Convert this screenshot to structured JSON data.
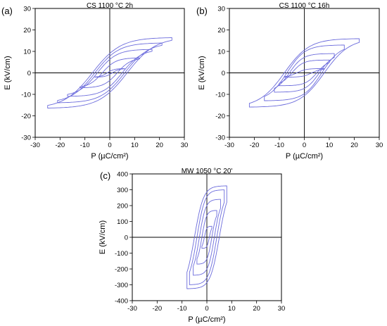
{
  "chart_data": [
    {
      "type": "line",
      "panel_label": "(a)",
      "title": "CS 1100 °C 2h",
      "xlabel": "P (µC/cm²)",
      "ylabel": "E (kV/cm)",
      "xlim": [
        -30,
        30
      ],
      "ylim": [
        -30,
        30
      ],
      "xticks": [
        "-30",
        "-20",
        "-10",
        "0",
        "10",
        "20",
        "30"
      ],
      "yticks": [
        "30",
        "20",
        "10",
        "0",
        "-10",
        "-20",
        "-30"
      ],
      "grid": false,
      "series": [
        {
          "values": {
            "Pmax": 6,
            "Emax": 2,
            "Ec": 2,
            "Pr": 1
          }
        },
        {
          "values": {
            "Pmax": 12,
            "Emax": 7,
            "Ec": 5,
            "Pr": 3
          }
        },
        {
          "values": {
            "Pmax": 17,
            "Emax": 11,
            "Ec": 7,
            "Pr": 5
          }
        },
        {
          "values": {
            "Pmax": 21,
            "Emax": 14,
            "Ec": 8,
            "Pr": 6
          }
        },
        {
          "values": {
            "Pmax": 25,
            "Emax": 16.5,
            "Ec": 9,
            "Pr": 7
          }
        }
      ]
    },
    {
      "type": "line",
      "panel_label": "(b)",
      "title": "CS 1100 °C 16h",
      "xlabel": "P (µC/cm²)",
      "ylabel": "E (kV/cm)",
      "xlim": [
        -30,
        30
      ],
      "ylim": [
        -30,
        30
      ],
      "xticks": [
        "-30",
        "-20",
        "-10",
        "0",
        "10",
        "20",
        "30"
      ],
      "yticks": [
        "30",
        "20",
        "10",
        "0",
        "-10",
        "-20",
        "-30"
      ],
      "grid": false,
      "series": [
        {
          "values": {
            "Pmax": 8,
            "Emax": 2,
            "Ec": 2,
            "Pr": 3
          }
        },
        {
          "values": {
            "Pmax": 10,
            "Emax": 6,
            "Ec": 5,
            "Pr": 5
          }
        },
        {
          "values": {
            "Pmax": 12,
            "Emax": 9,
            "Ec": 7,
            "Pr": 6
          }
        },
        {
          "values": {
            "Pmax": 16,
            "Emax": 13,
            "Ec": 8,
            "Pr": 7
          }
        },
        {
          "values": {
            "Pmax": 22,
            "Emax": 16,
            "Ec": 9,
            "Pr": 8
          }
        }
      ]
    },
    {
      "type": "line",
      "panel_label": "(c)",
      "title": "MW 1050 °C 20'",
      "xlabel": "P (µC/cm²)",
      "ylabel": "E (kV/cm)",
      "xlim": [
        -30,
        30
      ],
      "ylim": [
        -400,
        400
      ],
      "xticks": [
        "-30",
        "-20",
        "-10",
        "0",
        "10",
        "20",
        "30"
      ],
      "yticks": [
        "400",
        "300",
        "200",
        "100",
        "0",
        "-100",
        "-200",
        "-300",
        "-400"
      ],
      "grid": false,
      "series": [
        {
          "values": {
            "Pmax": 2,
            "Emax": 70,
            "Ec": 30,
            "Pr": 1
          }
        },
        {
          "values": {
            "Pmax": 4,
            "Emax": 170,
            "Ec": 90,
            "Pr": 2
          }
        },
        {
          "values": {
            "Pmax": 5.5,
            "Emax": 240,
            "Ec": 140,
            "Pr": 3
          }
        },
        {
          "values": {
            "Pmax": 7,
            "Emax": 300,
            "Ec": 180,
            "Pr": 4
          }
        },
        {
          "values": {
            "Pmax": 8,
            "Emax": 325,
            "Ec": 200,
            "Pr": 5
          }
        }
      ]
    }
  ],
  "colors": {
    "curve": "#6b6bdc",
    "axis": "#000000"
  }
}
